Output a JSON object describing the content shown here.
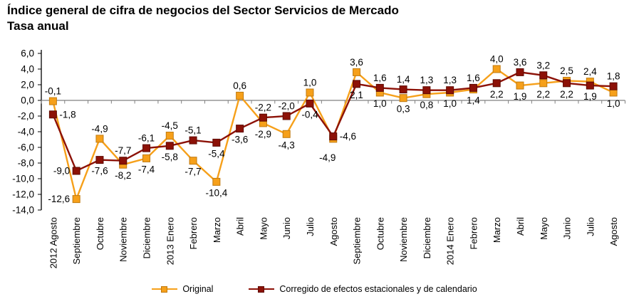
{
  "title": {
    "line1": "Índice general de cifra de negocios del Sector Servicios de Mercado",
    "line2": "Tasa anual"
  },
  "legend": {
    "items": [
      {
        "label": "Original",
        "color": "#F6A01A",
        "border": "#C07A10"
      },
      {
        "label": "Corregido de efectos estacionales y de calendario",
        "color": "#8C1107",
        "border": "#5E0A02"
      }
    ],
    "position": "bottom"
  },
  "chart_data": {
    "type": "line",
    "title": "Índice general de cifra de negocios del Sector Servicios de Mercado",
    "subtitle": "Tasa anual",
    "categories": [
      "2012 Agosto",
      "Septiembre",
      "Octubre",
      "Noviembre",
      "Diciembre",
      "2013 Enero",
      "Febrero",
      "Marzo",
      "Abril",
      "Mayo",
      "Junio",
      "Julio",
      "Agosto",
      "Septiembre",
      "Octubre",
      "Noviembre",
      "Diciembre",
      "2014 Enero",
      "Febrero",
      "Marzo",
      "Abril",
      "Mayo",
      "Junio",
      "Julio",
      "Agosto"
    ],
    "series": [
      {
        "name": "Original",
        "color": "#F6A01A",
        "border": "#C07A10",
        "marker": "square",
        "values": [
          -0.1,
          -12.6,
          -4.9,
          -8.2,
          -7.4,
          -4.5,
          -7.7,
          -10.4,
          0.6,
          -2.9,
          -4.3,
          1.0,
          -4.9,
          3.6,
          1.0,
          0.3,
          0.8,
          1.0,
          1.4,
          4.0,
          1.9,
          2.2,
          2.5,
          2.4,
          1.0
        ],
        "label_positions": [
          "above",
          "left",
          "above",
          "below",
          "below",
          "above",
          "below",
          "below",
          "above",
          "below",
          "below",
          "above",
          "below-far",
          "above",
          "below",
          "below",
          "below",
          "below",
          "below",
          "above",
          "below",
          "below",
          "above",
          "above",
          "below"
        ]
      },
      {
        "name": "Corregido de efectos estacionales y de calendario",
        "color": "#8C1107",
        "border": "#5E0A02",
        "marker": "square",
        "values": [
          -1.8,
          -9.0,
          -7.6,
          -7.7,
          -6.1,
          -5.8,
          -5.1,
          -5.4,
          -3.6,
          -2.2,
          -2.0,
          -0.4,
          -4.6,
          2.1,
          1.6,
          1.4,
          1.3,
          1.3,
          1.6,
          2.2,
          3.6,
          3.2,
          2.2,
          1.9,
          1.8
        ],
        "label_positions": [
          "right",
          "left",
          "below",
          "above",
          "above",
          "below",
          "above",
          "below",
          "below",
          "above",
          "above",
          "below",
          "right",
          "below",
          "above",
          "above",
          "above",
          "above",
          "above",
          "below",
          "above",
          "above",
          "below",
          "below",
          "above"
        ]
      }
    ],
    "ylim": [
      -14,
      6
    ],
    "ytick_interval": 2,
    "ytick_labels": [
      "6,0",
      "4,0",
      "2,0",
      "0,0",
      "-2,0",
      "-4,0",
      "-6,0",
      "-8,0",
      "-10,0",
      "-12,0",
      "-14,0"
    ],
    "decimal_separator": ",",
    "grid": false,
    "legend_position": "bottom",
    "axis_colors": {
      "y_axis": "#000000",
      "zero_line": "#808080"
    },
    "data_labels": true
  }
}
